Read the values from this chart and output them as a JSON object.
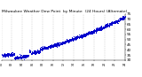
{
  "title": "Milwaukee Weather Dew Point  by Minute  (24 Hours) (Alternate)",
  "title_fontsize": 3.2,
  "dot_color": "#0000cc",
  "dot_size": 0.5,
  "background_color": "#ffffff",
  "grid_color": "#aaaaaa",
  "x_min": 0,
  "x_max": 1440,
  "y_min": 30,
  "y_max": 75,
  "y_ticks": [
    30,
    35,
    40,
    45,
    50,
    55,
    60,
    65,
    70,
    75
  ],
  "y_tick_fontsize": 3.0,
  "x_tick_fontsize": 2.3,
  "seed": 42
}
